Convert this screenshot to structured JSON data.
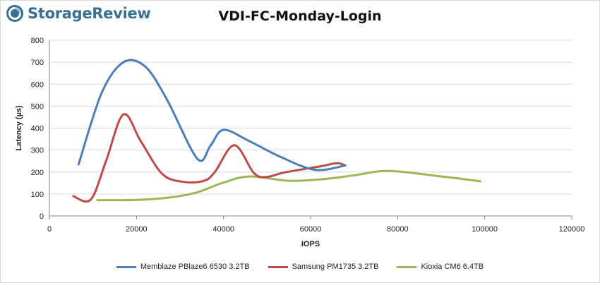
{
  "brand": {
    "name": "StorageReview"
  },
  "chart_data": {
    "type": "line",
    "title": "VDI-FC-Monday-Login",
    "xlabel": "IOPS",
    "ylabel": "Latency (µs)",
    "xlim": [
      0,
      120000
    ],
    "ylim": [
      0,
      800
    ],
    "xticks": [
      0,
      20000,
      40000,
      60000,
      80000,
      100000,
      120000
    ],
    "yticks": [
      0,
      100,
      200,
      300,
      400,
      500,
      600,
      700,
      800
    ],
    "grid": "horizontal",
    "legend_position": "bottom",
    "series": [
      {
        "name": "Memblaze PBlaze6 6530 3.2TB",
        "color": "#4a7ebb",
        "points": [
          [
            6700,
            235
          ],
          [
            12000,
            560
          ],
          [
            17000,
            700
          ],
          [
            22000,
            680
          ],
          [
            27000,
            530
          ],
          [
            34000,
            260
          ],
          [
            37000,
            320
          ],
          [
            40000,
            392
          ],
          [
            46000,
            340
          ],
          [
            53000,
            270
          ],
          [
            61000,
            210
          ],
          [
            68000,
            230
          ]
        ]
      },
      {
        "name": "Samsung PM1735 3.2TB",
        "color": "#be4b48",
        "points": [
          [
            5500,
            90
          ],
          [
            9500,
            75
          ],
          [
            13000,
            250
          ],
          [
            17000,
            462
          ],
          [
            21000,
            340
          ],
          [
            26000,
            190
          ],
          [
            31000,
            155
          ],
          [
            35500,
            160
          ],
          [
            38000,
            200
          ],
          [
            42500,
            322
          ],
          [
            47000,
            195
          ],
          [
            50000,
            178
          ],
          [
            54000,
            198
          ],
          [
            62000,
            225
          ],
          [
            66000,
            240
          ],
          [
            68000,
            230
          ]
        ]
      },
      {
        "name": "Kioxia CM6 6.4TB",
        "color": "#98b954",
        "points": [
          [
            11000,
            72
          ],
          [
            20000,
            73
          ],
          [
            28000,
            85
          ],
          [
            34000,
            108
          ],
          [
            40000,
            152
          ],
          [
            46000,
            180
          ],
          [
            55000,
            160
          ],
          [
            63000,
            168
          ],
          [
            70000,
            185
          ],
          [
            78000,
            205
          ],
          [
            90000,
            180
          ],
          [
            99000,
            158
          ]
        ]
      }
    ]
  }
}
